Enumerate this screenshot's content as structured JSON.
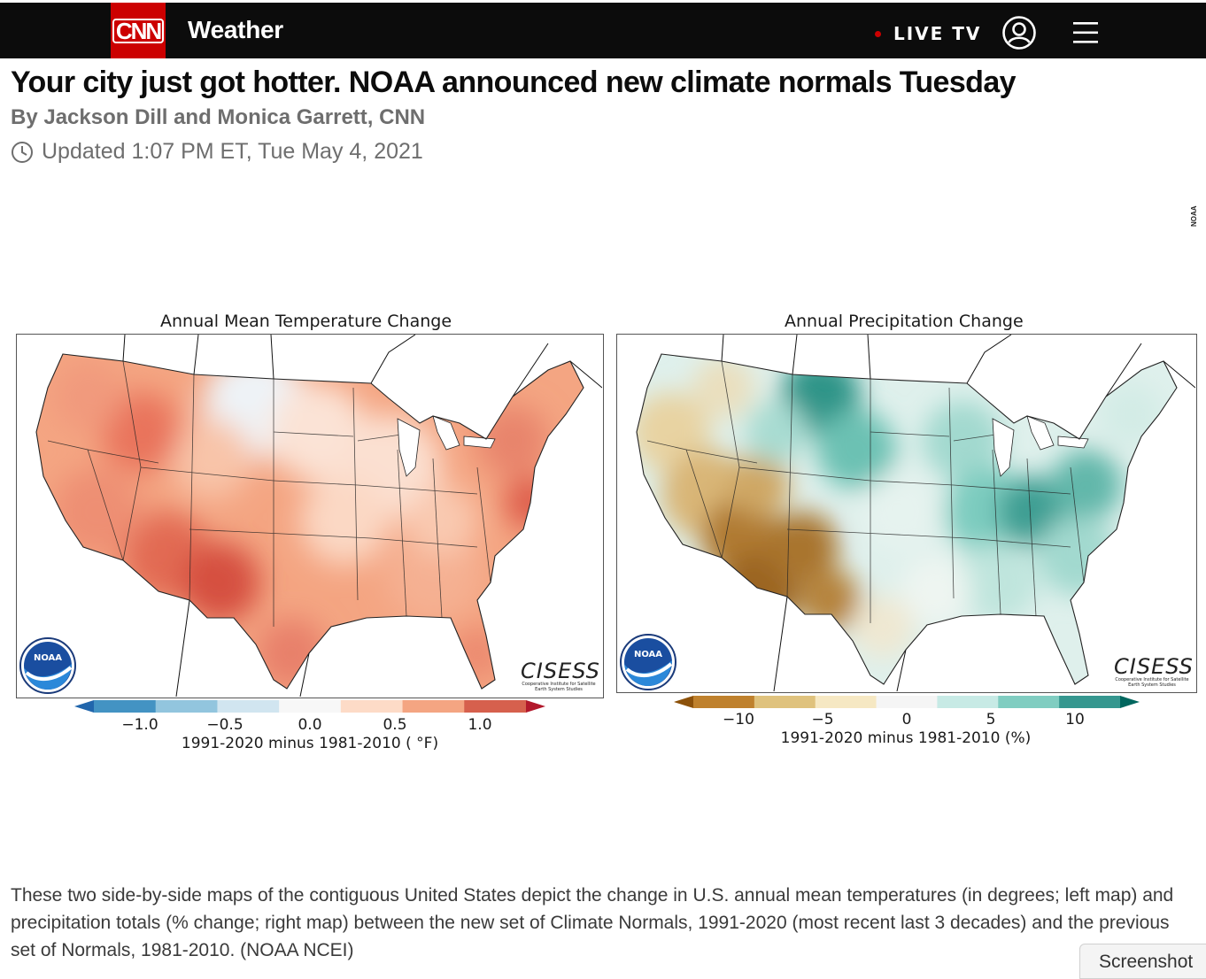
{
  "header": {
    "logo_text": "CNN",
    "section": "Weather",
    "live_label": "LIVE TV",
    "icons": [
      "account-icon",
      "menu-icon"
    ],
    "background": "#0c0c0c",
    "brand_color": "#cc0000"
  },
  "article": {
    "headline": "Your city just got hotter. NOAA announced new climate normals Tuesday",
    "byline": "By Jackson Dill and Monica Garrett, CNN",
    "updated": "Updated 1:07 PM ET, Tue May 4, 2021"
  },
  "figure": {
    "credit": "NOAA",
    "left_map": {
      "title": "Annual Mean Temperature Change",
      "colorbar_ticks": [
        "−1.0",
        "−0.5",
        "0.0",
        "0.5",
        "1.0"
      ],
      "colorbar_label": "1991-2020 minus 1981-2010 ( °F)",
      "colors": [
        "#2166ac",
        "#4393c3",
        "#92c5de",
        "#d1e5f0",
        "#f7f7f7",
        "#fddbc7",
        "#f4a582",
        "#d6604d",
        "#b2182b"
      ],
      "logos": [
        "NOAA",
        "CISESS"
      ],
      "cisess_sub": "Cooperative Institute for Satellite Earth System Studies"
    },
    "right_map": {
      "title": "Annual Precipitation Change",
      "colorbar_ticks": [
        "−10",
        "−5",
        "0",
        "5",
        "10"
      ],
      "colorbar_label": "1991-2020 minus 1981-2010 (%)",
      "colors": [
        "#8c510a",
        "#bf812d",
        "#dfc27d",
        "#f6e8c3",
        "#f5f5f5",
        "#c7eae5",
        "#80cdc1",
        "#35978f",
        "#01665e"
      ],
      "logos": [
        "NOAA",
        "CISESS"
      ],
      "cisess_sub": "Cooperative Institute for Satellite Earth System Studies"
    }
  },
  "caption": "These two side-by-side maps of the contiguous United States depict the change in U.S. annual mean temperatures (in degrees; left map) and precipitation totals (% change; right map) between the new set of Climate Normals, 1991-2020 (most recent last 3 decades) and the previous set of Normals, 1981-2010. (NOAA NCEI)",
  "screenshot_tab": "Screenshot"
}
